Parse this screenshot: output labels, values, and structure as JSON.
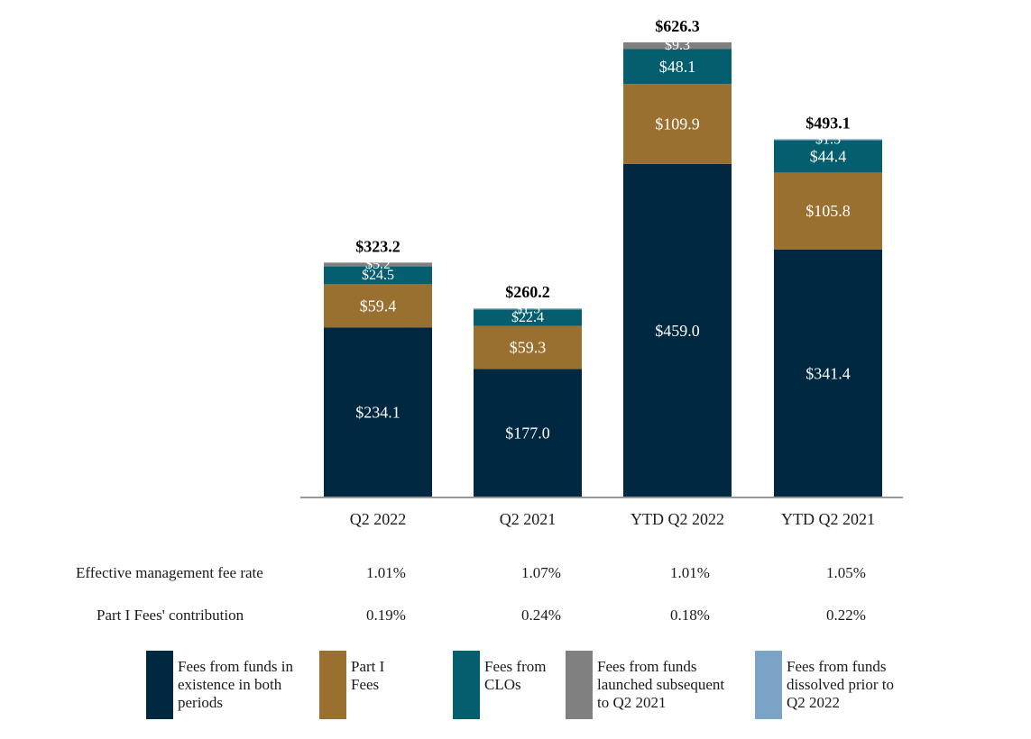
{
  "chart_data": {
    "type": "stacked-bar",
    "categories": [
      "Q2 2022",
      "Q2 2021",
      "YTD Q2 2022",
      "YTD Q2 2021"
    ],
    "totals": [
      "$323.2",
      "$260.2",
      "$626.3",
      "$493.1"
    ],
    "total_values": [
      323.2,
      260.2,
      626.3,
      493.1
    ],
    "series": [
      {
        "key": "existing",
        "name": "Fees from funds in existence in both periods",
        "color": "#002840",
        "values": [
          234.1,
          177.0,
          459.0,
          341.4
        ],
        "labels": [
          "$234.1",
          "$177.0",
          "$459.0",
          "$341.4"
        ]
      },
      {
        "key": "part1",
        "name": "Part I Fees",
        "color": "#9A7030",
        "values": [
          59.4,
          59.3,
          109.9,
          105.8
        ],
        "labels": [
          "$59.4",
          "$59.3",
          "$109.9",
          "$105.8"
        ]
      },
      {
        "key": "clo",
        "name": "Fees from CLOs",
        "color": "#045E6E",
        "values": [
          24.5,
          22.4,
          48.1,
          44.4
        ],
        "labels": [
          "$24.5",
          "$22.4",
          "$48.1",
          "$44.4"
        ]
      },
      {
        "key": "launched",
        "name": "Fees from funds launched subsequent to Q2 2021",
        "color": "#808080",
        "values": [
          5.2,
          0,
          9.3,
          0
        ],
        "labels": [
          "$5.2",
          "",
          "$9.3",
          ""
        ]
      },
      {
        "key": "dissolved",
        "name": "Fees from funds dissolved prior to Q2 2022",
        "color": "#7BA3C6",
        "values": [
          0,
          1.5,
          0,
          1.5
        ],
        "labels": [
          "",
          "$1.5",
          "",
          "$1.5"
        ]
      }
    ],
    "ylim": [
      0,
      626.3
    ]
  },
  "metrics": [
    {
      "label": "Effective management fee rate",
      "values": [
        "1.01%",
        "1.07%",
        "1.01%",
        "1.05%"
      ]
    },
    {
      "label": "Part I Fees' contribution",
      "values": [
        "0.19%",
        "0.24%",
        "0.18%",
        "0.22%"
      ]
    }
  ],
  "legend": [
    {
      "text": "Fees from funds in\nexistence in both\nperiods",
      "color": "#002840"
    },
    {
      "text": "Part I\nFees",
      "color": "#9A7030"
    },
    {
      "text": "Fees from\nCLOs",
      "color": "#045E6E"
    },
    {
      "text": "Fees from funds\nlaunched subsequent\nto Q2 2021",
      "color": "#808080"
    },
    {
      "text": "Fees from funds\ndissolved prior to\nQ2 2022",
      "color": "#7BA3C6"
    }
  ]
}
